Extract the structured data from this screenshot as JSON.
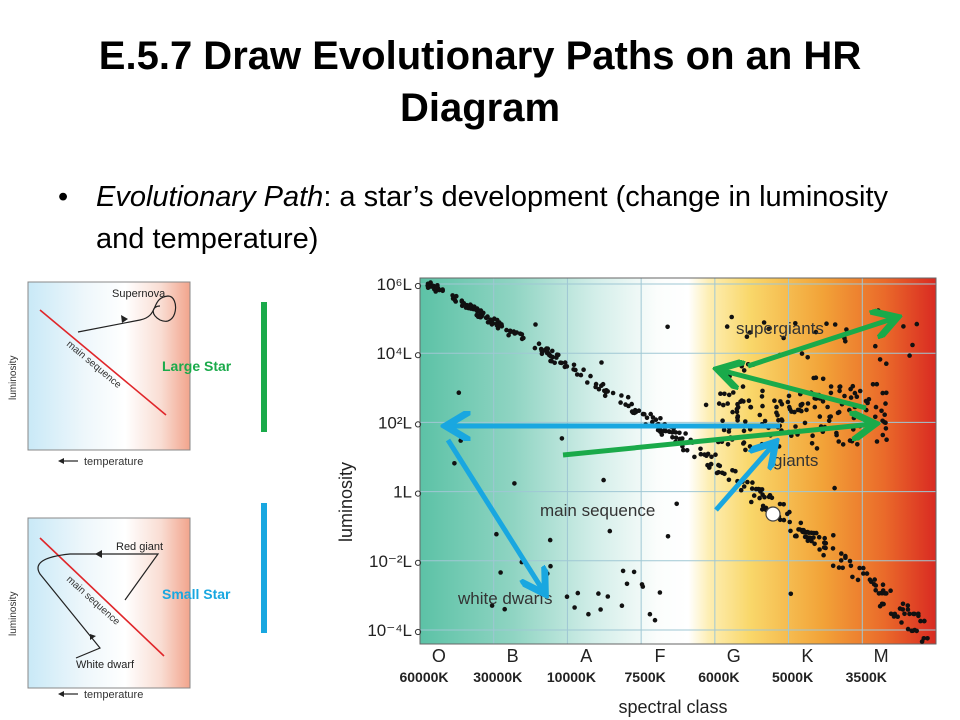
{
  "slide": {
    "title": "E.5.7 Draw Evolutionary Paths on an HR Diagram",
    "bullet_term": "Evolutionary Path",
    "bullet_rest": ": a star’s development (change in luminosity and temperature)"
  },
  "small_chart_top": {
    "ylabel": "luminosity",
    "xlabel": "temperature",
    "main_sequence_label": "main sequence",
    "annotation": "Supernova"
  },
  "small_chart_bottom": {
    "ylabel": "luminosity",
    "xlabel": "temperature",
    "main_sequence_label": "main sequence",
    "annotation_top": "Red giant",
    "annotation_bottom": "White dwarf"
  },
  "labels": {
    "large_star": "Large Star",
    "small_star": "Small Star",
    "large_color": "#1aaa4a",
    "small_color": "#19a7e0"
  },
  "hr": {
    "ylabel": "luminosity",
    "xlabel": "spectral class",
    "y_ticks": [
      "10⁶L",
      "10⁴L",
      "10²L",
      "1L",
      "10⁻²L",
      "10⁻⁴L"
    ],
    "spectral_classes": [
      "O",
      "B",
      "A",
      "F",
      "G",
      "K",
      "M"
    ],
    "temperatures": [
      "60000K",
      "30000K",
      "10000K",
      "7500K",
      "6000K",
      "5000K",
      "3500K"
    ],
    "region_labels": {
      "supergiants": "supergiants",
      "giants": "giants",
      "main_sequence": "main sequence",
      "white_dwarfs": "white dwarfs"
    }
  }
}
